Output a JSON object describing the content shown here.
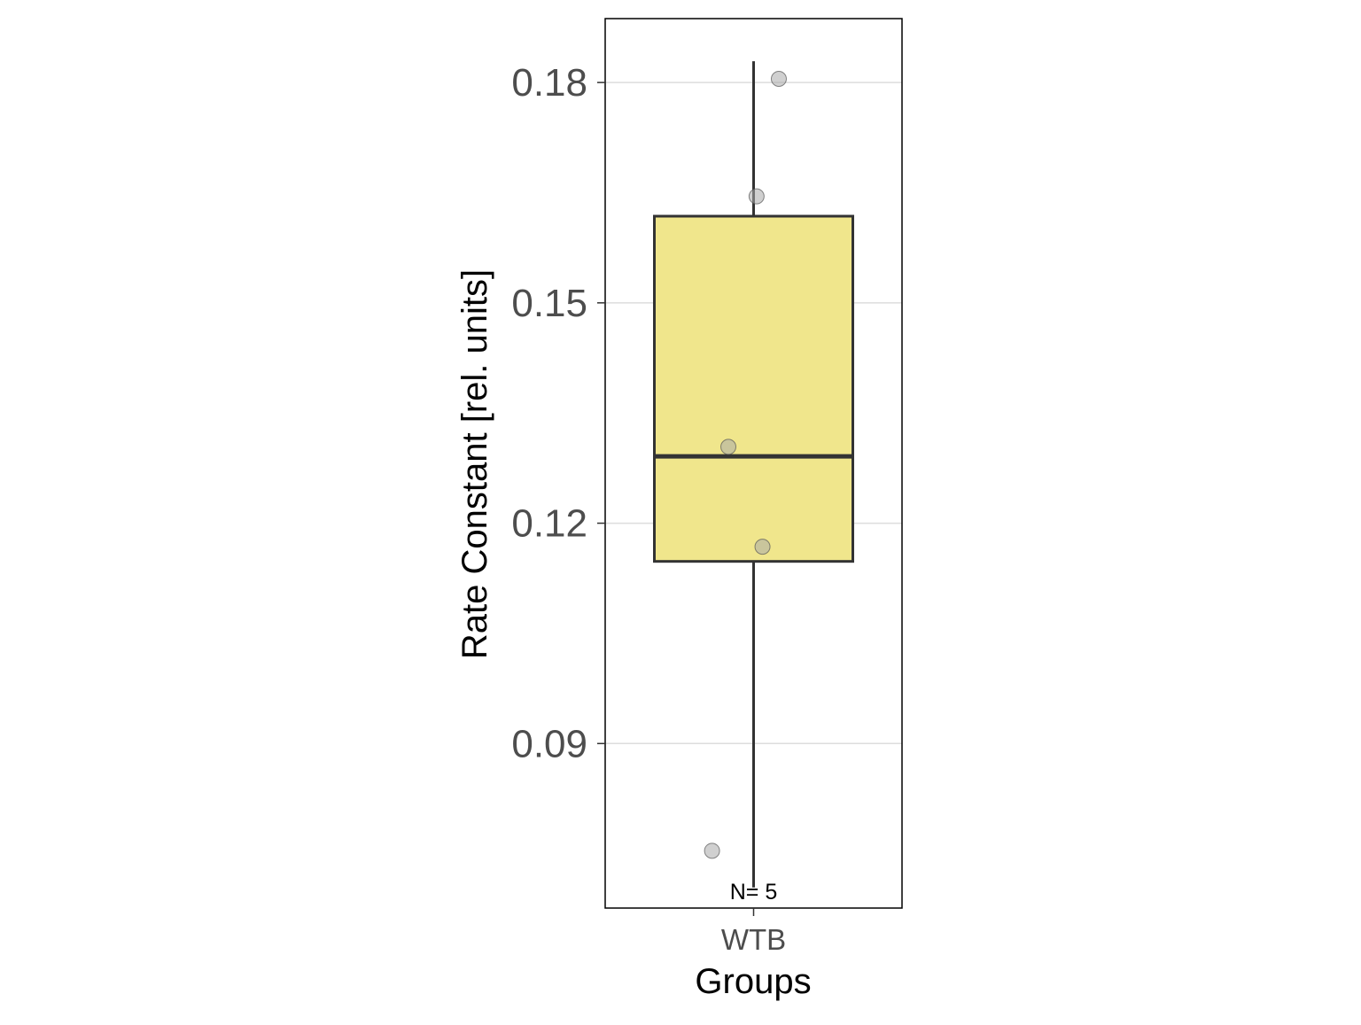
{
  "chart_data": {
    "type": "boxplot",
    "xlabel": "Groups",
    "ylabel": "Rate Constant [rel. units]",
    "categories": [
      "WTB"
    ],
    "ylim": [
      0.0676,
      0.1887
    ],
    "yticks": [
      0.09,
      0.12,
      0.15,
      0.18
    ],
    "ytick_labels": [
      "0.09",
      "0.12",
      "0.15",
      "0.18"
    ],
    "grid": "horizontal major",
    "boxes": [
      {
        "category": "WTB",
        "whisker_low": 0.0704,
        "q1": 0.1148,
        "median": 0.1291,
        "q3": 0.1618,
        "whisker_high": 0.1829,
        "fill": "#F0E68C",
        "n_label": "N= 5"
      }
    ],
    "points": [
      {
        "category": "WTB",
        "jitter": 0.17,
        "y": 0.1805
      },
      {
        "category": "WTB",
        "jitter": 0.02,
        "y": 0.1645
      },
      {
        "category": "WTB",
        "jitter": -0.17,
        "y": 0.1304
      },
      {
        "category": "WTB",
        "jitter": 0.06,
        "y": 0.1168
      },
      {
        "category": "WTB",
        "jitter": -0.28,
        "y": 0.0754
      }
    ],
    "colors": {
      "box_fill": "#F0E68C",
      "box_line": "#333333",
      "point_fill": "#A9A9A9",
      "grid": "#DDDDDD",
      "panel_border": "#000000"
    }
  }
}
